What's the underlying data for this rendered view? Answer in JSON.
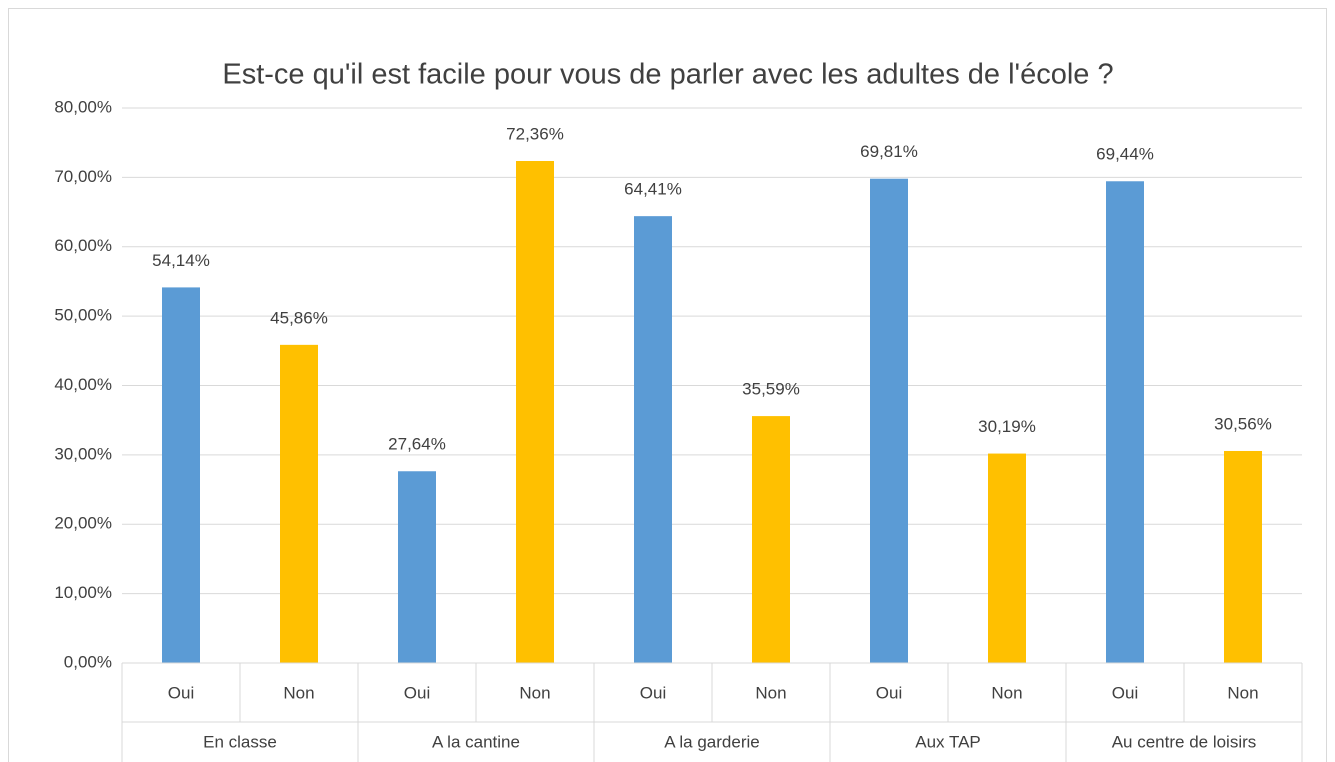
{
  "chart_data": {
    "type": "bar",
    "title": "Est-ce qu'il est facile pour vous de parler avec les adultes de l'école ?",
    "categories": [
      "Oui",
      "Non",
      "Oui",
      "Non",
      "Oui",
      "Non",
      "Oui",
      "Non",
      "Oui",
      "Non"
    ],
    "groups": [
      "En classe",
      "A la cantine",
      "A la garderie",
      "Aux TAP",
      "Au centre de loisirs"
    ],
    "values": [
      54.14,
      45.86,
      27.64,
      72.36,
      64.41,
      35.59,
      69.81,
      30.19,
      69.44,
      30.56
    ],
    "value_labels": [
      "54,14%",
      "45,86%",
      "27,64%",
      "72,36%",
      "64,41%",
      "35,59%",
      "69,81%",
      "30,19%",
      "69,44%",
      "30,56%"
    ],
    "colors": [
      "#5b9bd5",
      "#ffc000",
      "#5b9bd5",
      "#ffc000",
      "#5b9bd5",
      "#ffc000",
      "#5b9bd5",
      "#ffc000",
      "#5b9bd5",
      "#ffc000"
    ],
    "ylim": [
      0,
      80
    ],
    "yticks": [
      {
        "value": 0,
        "label": "0,00%"
      },
      {
        "value": 10,
        "label": "10,00%"
      },
      {
        "value": 20,
        "label": "20,00%"
      },
      {
        "value": 30,
        "label": "30,00%"
      },
      {
        "value": 40,
        "label": "40,00%"
      },
      {
        "value": 50,
        "label": "50,00%"
      },
      {
        "value": 60,
        "label": "60,00%"
      },
      {
        "value": 70,
        "label": "70,00%"
      },
      {
        "value": 80,
        "label": "80,00%"
      }
    ],
    "grid": true
  }
}
